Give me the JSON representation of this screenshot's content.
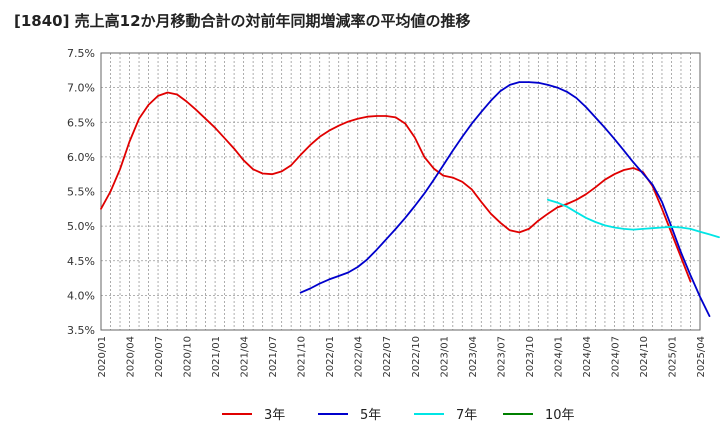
{
  "chart_data": {
    "type": "line",
    "title": "[1840]  売上高12か月移動合計の対前年同期増減率の平均値の推移",
    "xlabel": "",
    "ylabel": "",
    "x_ticks": [
      "2020/01",
      "2020/04",
      "2020/07",
      "2020/10",
      "2021/01",
      "2021/04",
      "2021/07",
      "2021/10",
      "2022/01",
      "2022/04",
      "2022/07",
      "2022/10",
      "2023/01",
      "2023/04",
      "2023/07",
      "2023/10",
      "2024/01",
      "2024/04",
      "2024/07",
      "2024/10",
      "2025/01",
      "2025/04"
    ],
    "y_ticks": [
      "3.5%",
      "4.0%",
      "4.5%",
      "5.0%",
      "5.5%",
      "6.0%",
      "6.5%",
      "7.0%",
      "7.5%"
    ],
    "ylim": [
      3.5,
      7.5
    ],
    "x_start": "2020/01",
    "x_months": 63,
    "grid": true,
    "legend_position": "bottom",
    "series": [
      {
        "name": "3年",
        "color": "#e00000",
        "start_month": 0,
        "values": [
          5.25,
          5.5,
          5.82,
          6.22,
          6.55,
          6.75,
          6.88,
          6.93,
          6.9,
          6.8,
          6.68,
          6.55,
          6.42,
          6.27,
          6.12,
          5.95,
          5.82,
          5.76,
          5.75,
          5.79,
          5.88,
          6.03,
          6.17,
          6.29,
          6.38,
          6.45,
          6.51,
          6.55,
          6.58,
          6.59,
          6.59,
          6.57,
          6.48,
          6.28,
          6.0,
          5.83,
          5.73,
          5.7,
          5.64,
          5.53,
          5.35,
          5.18,
          5.05,
          4.94,
          4.91,
          4.96,
          5.08,
          5.18,
          5.27,
          5.32,
          5.38,
          5.46,
          5.56,
          5.67,
          5.75,
          5.81,
          5.84,
          5.78,
          5.58,
          5.25,
          4.9,
          4.55,
          4.2
        ]
      },
      {
        "name": "5年",
        "color": "#0000cc",
        "start_month": 21,
        "values": [
          4.04,
          4.1,
          4.17,
          4.23,
          4.28,
          4.33,
          4.41,
          4.52,
          4.66,
          4.81,
          4.96,
          5.12,
          5.29,
          5.47,
          5.67,
          5.88,
          6.09,
          6.29,
          6.48,
          6.65,
          6.81,
          6.95,
          7.04,
          7.08,
          7.08,
          7.07,
          7.04,
          7.0,
          6.94,
          6.85,
          6.72,
          6.57,
          6.42,
          6.26,
          6.09,
          5.92,
          5.76,
          5.6,
          5.35,
          4.99,
          4.62,
          4.29,
          3.98,
          3.7
        ]
      },
      {
        "name": "7年",
        "color": "#00e5e5",
        "start_month": 47,
        "values": [
          5.38,
          5.34,
          5.28,
          5.2,
          5.12,
          5.06,
          5.01,
          4.98,
          4.96,
          4.95,
          4.96,
          4.97,
          4.98,
          4.99,
          4.98,
          4.96,
          4.92,
          4.88,
          4.84
        ]
      },
      {
        "name": "10年",
        "color": "#008000",
        "start_month": 0,
        "values": []
      }
    ]
  }
}
